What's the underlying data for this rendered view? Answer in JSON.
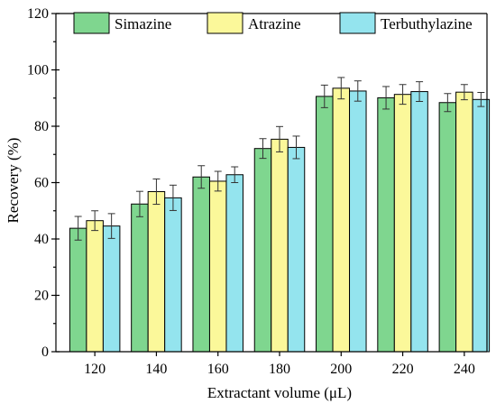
{
  "chart_data": {
    "type": "bar",
    "title": "",
    "xlabel": "Extractant volume (μL)",
    "ylabel": "Recovery (%)",
    "ylim": [
      0,
      120
    ],
    "yticks": [
      0,
      20,
      40,
      60,
      80,
      100,
      120
    ],
    "categories": [
      "120",
      "140",
      "160",
      "180",
      "200",
      "220",
      "240"
    ],
    "legend_position": "top",
    "grid": false,
    "series": [
      {
        "name": "Simazine",
        "color": "#7fd68f",
        "values": [
          43.8,
          52.4,
          62.0,
          72.1,
          90.6,
          90.1,
          88.4
        ],
        "errors": [
          4.2,
          4.5,
          4.0,
          3.5,
          4.0,
          4.0,
          3.2
        ]
      },
      {
        "name": "Atrazine",
        "color": "#fbf89a",
        "values": [
          46.5,
          56.8,
          60.5,
          75.4,
          93.5,
          91.3,
          92.1
        ],
        "errors": [
          3.5,
          4.5,
          3.5,
          4.5,
          3.8,
          3.5,
          2.7
        ]
      },
      {
        "name": "Terbuthylazine",
        "color": "#94e4ee",
        "values": [
          44.6,
          54.6,
          62.8,
          72.5,
          92.5,
          92.3,
          89.5
        ],
        "errors": [
          4.4,
          4.5,
          2.8,
          4.0,
          3.6,
          3.5,
          2.5
        ]
      }
    ]
  }
}
